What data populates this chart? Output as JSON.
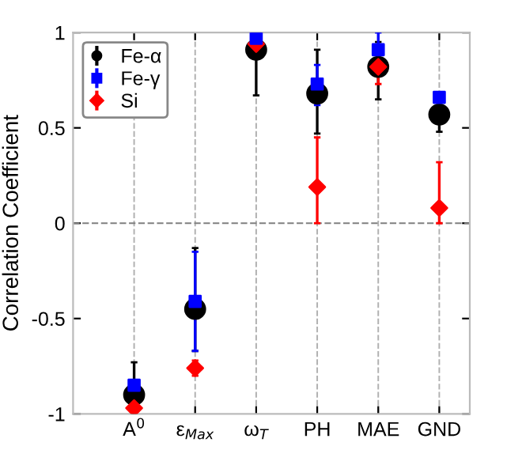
{
  "chart_data": {
    "type": "scatter",
    "ylabel": "Correlation Coefficient",
    "categories": [
      "A$^{0}$",
      "ε$_{Max}$",
      "ω$_{T}$",
      "PH",
      "MAE",
      "GND"
    ],
    "series": [
      {
        "name": "Fe-α",
        "color": "#000000",
        "marker": "circle",
        "values": [
          -0.9,
          -0.45,
          0.91,
          0.68,
          0.82,
          0.57
        ],
        "errors": [
          [
            -1.0,
            -0.73
          ],
          [
            -0.67,
            -0.13
          ],
          [
            0.67,
            0.91
          ],
          [
            0.47,
            0.91
          ],
          [
            0.65,
            0.95
          ],
          [
            0.48,
            0.62
          ]
        ]
      },
      {
        "name": "Fe-γ",
        "color": "#0000ff",
        "marker": "square",
        "values": [
          -0.85,
          -0.41,
          0.97,
          0.73,
          0.91,
          0.66
        ],
        "errors": [
          null,
          [
            -0.67,
            -0.15
          ],
          null,
          [
            0.62,
            0.83
          ],
          [
            0.85,
            1.0
          ],
          null
        ]
      },
      {
        "name": "Si",
        "color": "#ff0000",
        "marker": "diamond",
        "values": [
          -0.97,
          -0.76,
          0.94,
          0.19,
          0.82,
          0.08
        ],
        "errors": [
          null,
          [
            -0.8,
            -0.72
          ],
          null,
          [
            0.0,
            0.45
          ],
          [
            0.73,
            0.9
          ],
          [
            0.0,
            0.32
          ]
        ]
      }
    ],
    "ylim": [
      -1,
      1
    ],
    "yticks": [
      -1,
      -0.5,
      0,
      0.5,
      1
    ],
    "grid": "x",
    "legend": "top left",
    "ref_lines": [
      {
        "axis": "y",
        "value": 0,
        "color": "#808080",
        "line_style": "dashed"
      }
    ]
  }
}
